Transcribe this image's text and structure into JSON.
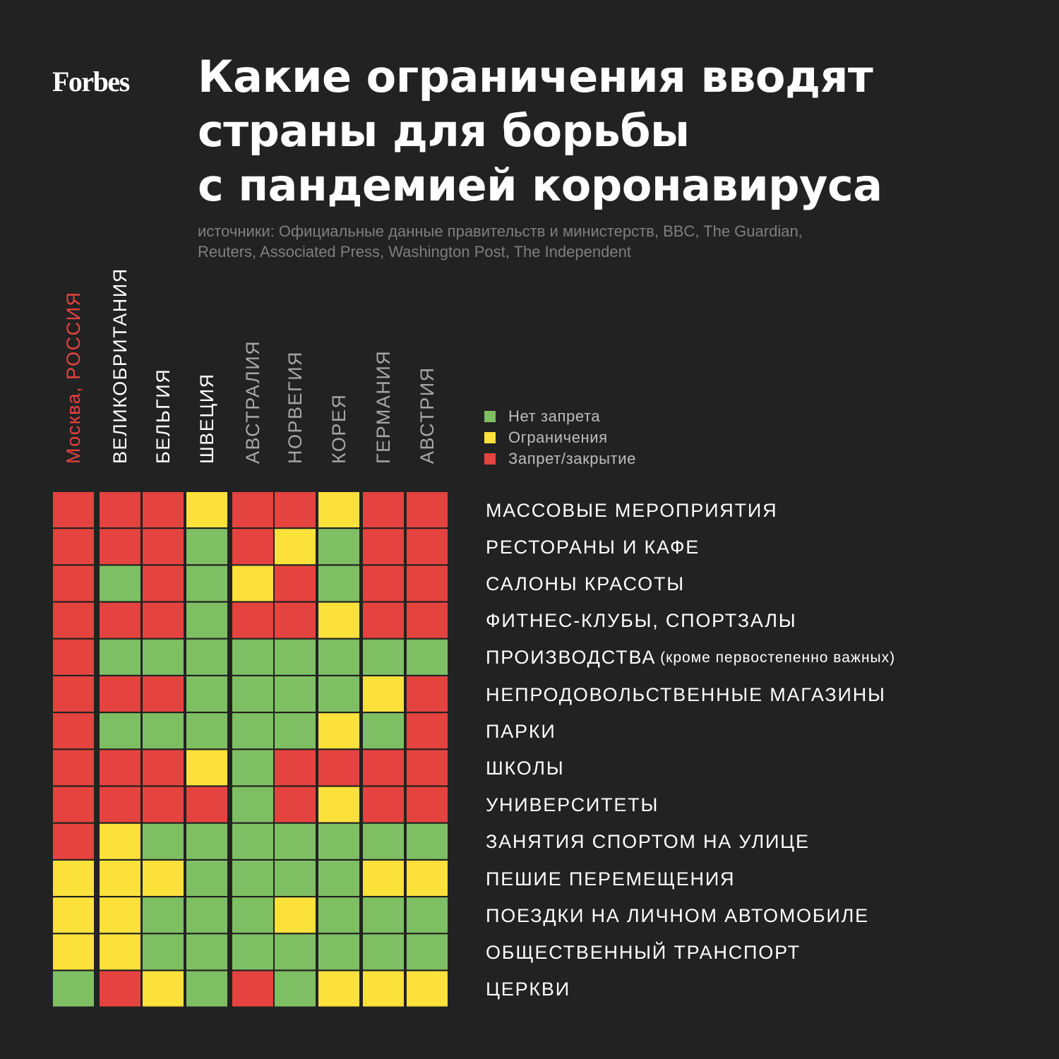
{
  "brand": "Forbes",
  "title_lines": [
    "Какие ограничения вводят",
    "страны для борьбы",
    "с пандемией коронавируса"
  ],
  "source_lines": [
    "источники: Официальные данные правительств и министерств, BBC, The Guardian,",
    "Reuters, Associated Press, Washington Post, The Independent"
  ],
  "colors": {
    "green": "#7fbf63",
    "yellow": "#fbe13a",
    "red": "#e5433f",
    "background": "#222222",
    "highlight": "#e5433f"
  },
  "chart_data": {
    "type": "heatmap",
    "title": "Какие ограничения вводят страны для борьбы с пандемией коронавируса",
    "legend": [
      {
        "key": "green",
        "label": "Нет запрета"
      },
      {
        "key": "yellow",
        "label": "Ограничения"
      },
      {
        "key": "red",
        "label": "Запрет/закрытие"
      }
    ],
    "columns": [
      {
        "city": "Москва, ",
        "country": "РОССИЯ",
        "highlight": true
      },
      {
        "city": "",
        "country": "ВЕЛИКОБРИТАНИЯ",
        "highlight": false
      },
      {
        "city": "",
        "country": "БЕЛЬГИЯ",
        "highlight": false
      },
      {
        "city": "",
        "country": "ШВЕЦИЯ",
        "highlight": false
      },
      {
        "city": "",
        "country": "АВСТРАЛИЯ",
        "highlight": false
      },
      {
        "city": "",
        "country": "НОРВЕГИЯ",
        "highlight": false
      },
      {
        "city": "",
        "country": "КОРЕЯ",
        "highlight": false
      },
      {
        "city": "",
        "country": "ГЕРМАНИЯ",
        "highlight": false
      },
      {
        "city": "",
        "country": "АВСТРИЯ",
        "highlight": false
      }
    ],
    "rows": [
      {
        "label": "МАССОВЫЕ МЕРОПРИЯТИЯ",
        "note": ""
      },
      {
        "label": "РЕСТОРАНЫ И КАФЕ",
        "note": ""
      },
      {
        "label": "САЛОНЫ КРАСОТЫ",
        "note": ""
      },
      {
        "label": "ФИТНЕС-КЛУБЫ, СПОРТЗАЛЫ",
        "note": ""
      },
      {
        "label": "ПРОИЗВОДСТВА",
        "note": "(кроме первостепенно важных)"
      },
      {
        "label": "НЕПРОДОВОЛЬСТВЕННЫЕ МАГАЗИНЫ",
        "note": ""
      },
      {
        "label": "ПАРКИ",
        "note": ""
      },
      {
        "label": "ШКОЛЫ",
        "note": ""
      },
      {
        "label": "УНИВЕРСИТЕТЫ",
        "note": ""
      },
      {
        "label": "ЗАНЯТИЯ СПОРТОМ НА УЛИЦЕ",
        "note": ""
      },
      {
        "label": "ПЕШИЕ ПЕРЕМЕЩЕНИЯ",
        "note": ""
      },
      {
        "label": "ПОЕЗДКИ НА ЛИЧНОМ АВТОМОБИЛЕ",
        "note": ""
      },
      {
        "label": "ОБЩЕСТВЕННЫЙ ТРАНСПОРТ",
        "note": ""
      },
      {
        "label": "ЦЕРКВИ",
        "note": ""
      }
    ],
    "values": [
      [
        "red",
        "red",
        "red",
        "yellow",
        "red",
        "red",
        "yellow",
        "red",
        "red"
      ],
      [
        "red",
        "red",
        "red",
        "green",
        "red",
        "yellow",
        "green",
        "red",
        "red"
      ],
      [
        "red",
        "green",
        "red",
        "green",
        "yellow",
        "red",
        "green",
        "red",
        "red"
      ],
      [
        "red",
        "red",
        "red",
        "green",
        "red",
        "red",
        "yellow",
        "red",
        "red"
      ],
      [
        "red",
        "green",
        "green",
        "green",
        "green",
        "green",
        "green",
        "green",
        "green"
      ],
      [
        "red",
        "red",
        "red",
        "green",
        "green",
        "green",
        "green",
        "yellow",
        "red"
      ],
      [
        "red",
        "green",
        "green",
        "green",
        "green",
        "green",
        "yellow",
        "green",
        "red"
      ],
      [
        "red",
        "red",
        "red",
        "yellow",
        "green",
        "red",
        "red",
        "red",
        "red"
      ],
      [
        "red",
        "red",
        "red",
        "red",
        "green",
        "red",
        "yellow",
        "red",
        "red"
      ],
      [
        "red",
        "yellow",
        "green",
        "green",
        "green",
        "green",
        "green",
        "green",
        "green"
      ],
      [
        "yellow",
        "yellow",
        "yellow",
        "green",
        "green",
        "green",
        "green",
        "yellow",
        "yellow"
      ],
      [
        "yellow",
        "yellow",
        "green",
        "green",
        "green",
        "yellow",
        "green",
        "green",
        "green"
      ],
      [
        "yellow",
        "yellow",
        "green",
        "green",
        "green",
        "green",
        "green",
        "green",
        "green"
      ],
      [
        "green",
        "red",
        "yellow",
        "green",
        "red",
        "green",
        "yellow",
        "yellow",
        "yellow"
      ]
    ]
  }
}
